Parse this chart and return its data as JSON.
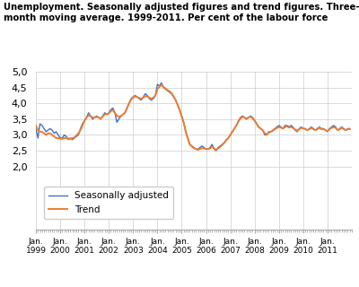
{
  "title": "Unemployment. Seasonally adjusted figures and trend figures. Three-\nmonth moving average. 1999-2011. Per cent of the labour force",
  "ylim": [
    0,
    5.0
  ],
  "yticks": [
    2.0,
    2.5,
    3.0,
    3.5,
    4.0,
    4.5,
    5.0
  ],
  "xlabel_years": [
    1999,
    2000,
    2001,
    2002,
    2003,
    2004,
    2005,
    2006,
    2007,
    2008,
    2009,
    2010,
    2011
  ],
  "sa_color": "#4472c4",
  "trend_color": "#ed7d31",
  "background_color": "#ffffff",
  "legend_labels": [
    "Seasonally adjusted",
    "Trend"
  ],
  "sa_data": [
    3.2,
    2.9,
    3.35,
    3.3,
    3.2,
    3.1,
    3.15,
    3.2,
    3.15,
    3.05,
    3.1,
    3.0,
    2.9,
    2.9,
    3.0,
    2.95,
    2.85,
    2.9,
    2.85,
    2.9,
    2.95,
    3.0,
    3.2,
    3.35,
    3.45,
    3.55,
    3.7,
    3.6,
    3.5,
    3.55,
    3.6,
    3.55,
    3.5,
    3.6,
    3.7,
    3.65,
    3.7,
    3.8,
    3.85,
    3.7,
    3.4,
    3.5,
    3.6,
    3.65,
    3.7,
    3.85,
    4.0,
    4.15,
    4.2,
    4.25,
    4.2,
    4.15,
    4.1,
    4.2,
    4.3,
    4.25,
    4.15,
    4.1,
    4.15,
    4.25,
    4.6,
    4.55,
    4.65,
    4.5,
    4.45,
    4.4,
    4.35,
    4.3,
    4.2,
    4.1,
    3.95,
    3.8,
    3.6,
    3.4,
    3.1,
    2.9,
    2.7,
    2.65,
    2.6,
    2.55,
    2.55,
    2.6,
    2.65,
    2.6,
    2.55,
    2.55,
    2.6,
    2.7,
    2.55,
    2.5,
    2.6,
    2.65,
    2.7,
    2.75,
    2.85,
    2.9,
    3.0,
    3.1,
    3.2,
    3.3,
    3.45,
    3.55,
    3.6,
    3.55,
    3.5,
    3.55,
    3.6,
    3.55,
    3.45,
    3.35,
    3.25,
    3.2,
    3.15,
    3.0,
    3.0,
    3.1,
    3.1,
    3.15,
    3.2,
    3.25,
    3.3,
    3.25,
    3.2,
    3.3,
    3.3,
    3.25,
    3.3,
    3.25,
    3.15,
    3.1,
    3.2,
    3.25,
    3.2,
    3.2,
    3.15,
    3.2,
    3.25,
    3.2,
    3.15,
    3.2,
    3.25,
    3.2,
    3.2,
    3.15,
    3.1,
    3.2,
    3.25,
    3.3,
    3.25,
    3.15,
    3.2,
    3.25,
    3.2,
    3.15,
    3.2,
    3.2
  ],
  "trend_data": [
    3.3,
    3.15,
    3.1,
    3.1,
    3.05,
    3.0,
    3.05,
    3.05,
    3.0,
    2.95,
    2.9,
    2.9,
    2.88,
    2.87,
    2.9,
    2.9,
    2.88,
    2.88,
    2.9,
    2.92,
    2.98,
    3.05,
    3.15,
    3.3,
    3.45,
    3.55,
    3.62,
    3.6,
    3.55,
    3.55,
    3.57,
    3.55,
    3.52,
    3.58,
    3.65,
    3.65,
    3.68,
    3.75,
    3.78,
    3.7,
    3.6,
    3.58,
    3.6,
    3.65,
    3.7,
    3.85,
    4.0,
    4.12,
    4.18,
    4.22,
    4.2,
    4.17,
    4.15,
    4.18,
    4.22,
    4.22,
    4.18,
    4.15,
    4.18,
    4.25,
    4.45,
    4.52,
    4.58,
    4.52,
    4.47,
    4.42,
    4.38,
    4.32,
    4.22,
    4.1,
    3.95,
    3.78,
    3.58,
    3.38,
    3.1,
    2.88,
    2.7,
    2.63,
    2.58,
    2.55,
    2.53,
    2.55,
    2.58,
    2.57,
    2.55,
    2.55,
    2.57,
    2.62,
    2.58,
    2.52,
    2.57,
    2.62,
    2.68,
    2.75,
    2.83,
    2.9,
    3.0,
    3.1,
    3.2,
    3.3,
    3.42,
    3.52,
    3.57,
    3.55,
    3.52,
    3.55,
    3.57,
    3.53,
    3.45,
    3.35,
    3.25,
    3.2,
    3.15,
    3.05,
    3.02,
    3.07,
    3.1,
    3.13,
    3.18,
    3.22,
    3.25,
    3.23,
    3.2,
    3.25,
    3.27,
    3.23,
    3.25,
    3.22,
    3.17,
    3.13,
    3.18,
    3.22,
    3.2,
    3.18,
    3.15,
    3.18,
    3.22,
    3.18,
    3.15,
    3.18,
    3.22,
    3.18,
    3.18,
    3.15,
    3.12,
    3.18,
    3.22,
    3.25,
    3.22,
    3.15,
    3.18,
    3.22,
    3.18,
    3.15,
    3.18,
    3.18
  ]
}
